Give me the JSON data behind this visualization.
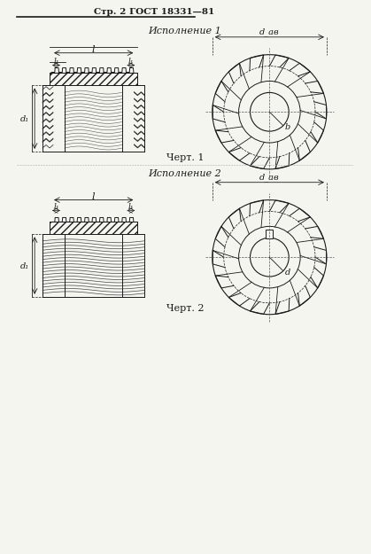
{
  "page_header": "Стр. 2 ГОСТ 18331—81",
  "title1": "Исполнение 1",
  "title2": "Исполнение 2",
  "caption1": "Черт. 1",
  "caption2": "Черт. 2",
  "bg_color": "#f5f5f0",
  "line_color": "#1a1a1a",
  "hatch_color": "#555555",
  "dim_color": "#333333"
}
